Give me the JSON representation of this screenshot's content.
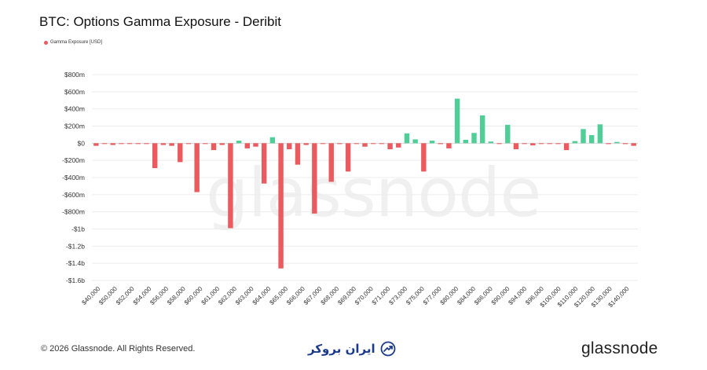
{
  "title": "BTC: Options Gamma Exposure - Deribit",
  "legend": {
    "label": "Gamma Exposure [USD]",
    "color": "#ea5a5f"
  },
  "watermark": "glassnode",
  "footer": {
    "copyright": "© 2026 Glassnode. All Rights Reserved.",
    "brand": "glassnode",
    "partner_logo_text": "ایران بروکر"
  },
  "colors": {
    "positive": "#4fcf97",
    "negative": "#ea5a5f",
    "grid": "#ececec",
    "text": "#333333"
  },
  "chart_data": {
    "type": "bar",
    "xlabel": "",
    "ylabel": "",
    "ylim": [
      -1600,
      800
    ],
    "y_ticks": [
      {
        "value": 800,
        "label": "$800m"
      },
      {
        "value": 600,
        "label": "$600m"
      },
      {
        "value": 400,
        "label": "$400m"
      },
      {
        "value": 200,
        "label": "$200m"
      },
      {
        "value": 0,
        "label": "$0"
      },
      {
        "value": -200,
        "label": "-$200m"
      },
      {
        "value": -400,
        "label": "-$400m"
      },
      {
        "value": -600,
        "label": "-$600m"
      },
      {
        "value": -800,
        "label": "-$800m"
      },
      {
        "value": -1000,
        "label": "-$1b"
      },
      {
        "value": -1200,
        "label": "-$1.2b"
      },
      {
        "value": -1400,
        "label": "-$1.4b"
      },
      {
        "value": -1600,
        "label": "-$1.6b"
      }
    ],
    "x_tick_labels": [
      "$40,000",
      "$50,000",
      "$52,000",
      "$54,000",
      "$56,000",
      "$58,000",
      "$60,000",
      "$61,000",
      "$62,000",
      "$63,000",
      "$64,000",
      "$65,000",
      "$66,000",
      "$67,000",
      "$68,000",
      "$69,000",
      "$70,000",
      "$71,000",
      "$73,000",
      "$75,000",
      "$77,000",
      "$80,000",
      "$84,000",
      "$86,000",
      "$90,000",
      "$94,000",
      "$96,000",
      "$100,000",
      "$110,000",
      "$120,000",
      "$130,000",
      "$140,000"
    ],
    "grid": true,
    "legend_position": "top-left",
    "series": [
      {
        "name": "Gamma Exposure [USD]",
        "values": [
          -30,
          -5,
          -20,
          -3,
          -5,
          -8,
          -5,
          -290,
          -20,
          -30,
          -220,
          -5,
          -570,
          -5,
          -80,
          -20,
          -990,
          30,
          -60,
          -40,
          -470,
          70,
          -1460,
          -70,
          -250,
          -20,
          -820,
          -5,
          -450,
          -10,
          -330,
          -5,
          -40,
          -5,
          -5,
          -70,
          -50,
          115,
          45,
          -330,
          30,
          -10,
          -60,
          520,
          40,
          120,
          325,
          20,
          -5,
          215,
          -70,
          -5,
          -25,
          -3,
          -5,
          -5,
          -80,
          25,
          165,
          95,
          220,
          -10,
          15,
          -10,
          -30
        ]
      }
    ]
  }
}
